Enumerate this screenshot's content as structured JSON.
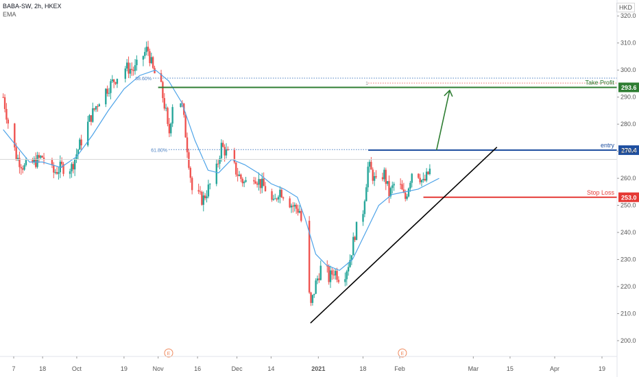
{
  "header": {
    "symbol_line": "BABA-SW, 2h, HKEX",
    "indicator": "EMA",
    "currency": "HKD"
  },
  "colors": {
    "up": "#26a69a",
    "down": "#ef5350",
    "ema": "#4da3e8",
    "take_profit": "#2e7d32",
    "entry": "#1e4fa0",
    "stop_loss": "#e53935",
    "trend": "#000000",
    "fib": "#4a7fc1"
  },
  "chart_data": {
    "type": "candlestick",
    "title": "BABA-SW, 2h, HKEX",
    "ylabel": "HKD",
    "ylim": [
      193,
      323
    ],
    "y_ticks": [
      200,
      210,
      220,
      230,
      240,
      250,
      260,
      270,
      280,
      290,
      300,
      310,
      320
    ],
    "y_tick_labels": [
      "200.0",
      "210.0",
      "220.0",
      "230.0",
      "240.0",
      "250.0",
      "260.0",
      "270.0",
      "280.0",
      "290.0",
      "300.0",
      "310.0",
      "320.0"
    ],
    "x_ticks": [
      {
        "label": "7",
        "date": "2020-09-07"
      },
      {
        "label": "18",
        "date": "2020-09-18"
      },
      {
        "label": "Oct",
        "date": "2020-10-01"
      },
      {
        "label": "19",
        "date": "2020-10-19"
      },
      {
        "label": "Nov",
        "date": "2020-11-01"
      },
      {
        "label": "16",
        "date": "2020-11-16"
      },
      {
        "label": "Dec",
        "date": "2020-12-01"
      },
      {
        "label": "14",
        "date": "2020-12-14"
      },
      {
        "label": "2021",
        "date": "2021-01-01"
      },
      {
        "label": "18",
        "date": "2021-01-18"
      },
      {
        "label": "Feb",
        "date": "2021-02-01"
      },
      {
        "label": "Mar",
        "date": "2021-03-01"
      },
      {
        "label": "15",
        "date": "2021-03-15"
      },
      {
        "label": "Apr",
        "date": "2021-04-01"
      },
      {
        "label": "19",
        "date": "2021-04-19"
      }
    ],
    "price_path": [
      [
        "2020-09-03",
        290
      ],
      [
        "2020-09-05",
        280
      ],
      [
        "2020-09-08",
        268
      ],
      [
        "2020-09-11",
        264
      ],
      [
        "2020-09-15",
        266
      ],
      [
        "2020-09-18",
        268
      ],
      [
        "2020-09-22",
        262
      ],
      [
        "2020-09-25",
        264
      ],
      [
        "2020-09-29",
        264
      ],
      [
        "2020-10-02",
        272
      ],
      [
        "2020-10-06",
        282
      ],
      [
        "2020-10-10",
        290
      ],
      [
        "2020-10-15",
        296
      ],
      [
        "2020-10-19",
        301
      ],
      [
        "2020-10-23",
        300
      ],
      [
        "2020-10-26",
        305
      ],
      [
        "2020-10-28",
        308
      ],
      [
        "2020-10-30",
        300
      ],
      [
        "2020-11-02",
        294
      ],
      [
        "2020-11-04",
        284
      ],
      [
        "2020-11-05",
        275
      ],
      [
        "2020-11-07",
        292
      ],
      [
        "2020-11-10",
        288
      ],
      [
        "2020-11-12",
        272
      ],
      [
        "2020-11-14",
        255
      ],
      [
        "2020-11-18",
        252
      ],
      [
        "2020-11-20",
        256
      ],
      [
        "2020-11-23",
        262
      ],
      [
        "2020-11-25",
        272
      ],
      [
        "2020-11-28",
        268
      ],
      [
        "2020-12-01",
        262
      ],
      [
        "2020-12-04",
        258
      ],
      [
        "2020-12-07",
        262
      ],
      [
        "2020-12-10",
        258
      ],
      [
        "2020-12-12",
        256
      ],
      [
        "2020-12-15",
        250
      ],
      [
        "2020-12-17",
        256
      ],
      [
        "2020-12-19",
        254
      ],
      [
        "2020-12-22",
        250
      ],
      [
        "2020-12-25",
        248
      ],
      [
        "2020-12-27",
        232
      ],
      [
        "2020-12-29",
        212
      ],
      [
        "2020-12-31",
        221
      ],
      [
        "2021-01-03",
        230
      ],
      [
        "2021-01-05",
        223
      ],
      [
        "2021-01-07",
        226
      ],
      [
        "2021-01-10",
        222
      ],
      [
        "2021-01-13",
        230
      ],
      [
        "2021-01-15",
        240
      ],
      [
        "2021-01-18",
        248
      ],
      [
        "2021-01-20",
        265
      ],
      [
        "2021-01-23",
        258
      ],
      [
        "2021-01-26",
        262
      ],
      [
        "2021-01-28",
        254
      ],
      [
        "2021-01-31",
        260
      ],
      [
        "2021-02-03",
        252
      ],
      [
        "2021-02-06",
        264
      ],
      [
        "2021-02-08",
        262
      ],
      [
        "2021-02-10",
        258
      ],
      [
        "2021-02-13",
        264
      ],
      [
        "2021-02-15",
        268
      ]
    ],
    "ema_path": [
      [
        "2020-09-03",
        278
      ],
      [
        "2020-09-08",
        272
      ],
      [
        "2020-09-13",
        266
      ],
      [
        "2020-09-18",
        266
      ],
      [
        "2020-09-25",
        264
      ],
      [
        "2020-10-01",
        268
      ],
      [
        "2020-10-07",
        276
      ],
      [
        "2020-10-13",
        285
      ],
      [
        "2020-10-19",
        293
      ],
      [
        "2020-10-25",
        298
      ],
      [
        "2020-10-31",
        300
      ],
      [
        "2020-11-05",
        296
      ],
      [
        "2020-11-10",
        288
      ],
      [
        "2020-11-15",
        274
      ],
      [
        "2020-11-20",
        263
      ],
      [
        "2020-11-24",
        262
      ],
      [
        "2020-11-29",
        267
      ],
      [
        "2020-12-04",
        265
      ],
      [
        "2020-12-09",
        262
      ],
      [
        "2020-12-14",
        258
      ],
      [
        "2020-12-19",
        256
      ],
      [
        "2020-12-24",
        253
      ],
      [
        "2020-12-27",
        245
      ],
      [
        "2020-12-31",
        232
      ],
      [
        "2021-01-04",
        228
      ],
      [
        "2021-01-09",
        226
      ],
      [
        "2021-01-14",
        230
      ],
      [
        "2021-01-19",
        240
      ],
      [
        "2021-01-24",
        250
      ],
      [
        "2021-01-29",
        254
      ],
      [
        "2021-02-03",
        255
      ],
      [
        "2021-02-08",
        256
      ],
      [
        "2021-02-12",
        258
      ],
      [
        "2021-02-16",
        260
      ]
    ],
    "levels": {
      "take_profit": {
        "label": "Take Profit",
        "value": 293.6,
        "value_label": "293.6",
        "from": "2020-11-01",
        "to": "2021-04-30"
      },
      "entry": {
        "label": "entry",
        "value": 270.4,
        "value_label": "270.4",
        "from": "2021-01-20",
        "to": "2021-04-30"
      },
      "stop_loss": {
        "label": "Stop Loss",
        "value": 253.0,
        "value_label": "253.0",
        "from": "2021-02-10",
        "to": "2021-04-30"
      }
    },
    "fib_levels": [
      {
        "label": "88.60%",
        "value": 297.0,
        "from": "2020-10-30",
        "to": "2021-04-30"
      },
      {
        "label": "61.80%",
        "value": 270.6,
        "from": "2020-11-05",
        "to": "2021-01-20"
      }
    ],
    "ratio_marker": {
      "label": "1",
      "value": 295.2,
      "from": "2021-01-20",
      "to": "2021-04-30"
    },
    "trendline": {
      "from": [
        "2020-12-29",
        206.5
      ],
      "to": [
        "2021-03-10",
        271.5
      ]
    },
    "projection_arrow": {
      "from": [
        "2021-02-15",
        270.4
      ],
      "to": [
        "2021-02-20",
        292.5
      ]
    },
    "event_markers": [
      {
        "label": "E",
        "date": "2020-11-05"
      },
      {
        "label": "E",
        "date": "2021-02-02"
      }
    ]
  }
}
